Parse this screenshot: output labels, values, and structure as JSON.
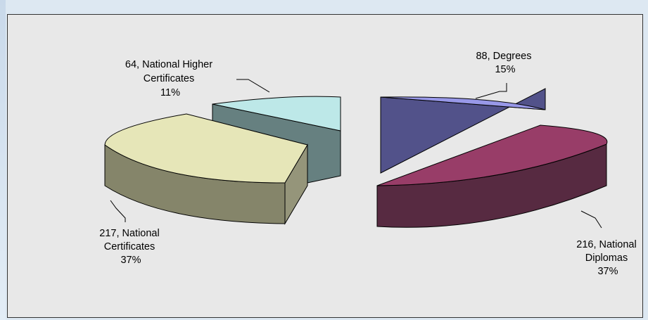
{
  "figure": {
    "title": ""
  },
  "chart_data": {
    "type": "pie",
    "style": "3d-exploded",
    "title": "",
    "slices": [
      {
        "label": "Degrees",
        "value": 88,
        "percent": "15%",
        "color": "#9898e8"
      },
      {
        "label": "National Diplomas",
        "value": 216,
        "percent": "37%",
        "color": "#983d68"
      },
      {
        "label": "National Certificates",
        "value": 217,
        "percent": "37%",
        "color": "#e6e6b8"
      },
      {
        "label": "National Higher Certificates",
        "value": 64,
        "percent": "11%",
        "color": "#bde8e8"
      }
    ],
    "data_labels": [
      {
        "lines": [
          "88, Degrees",
          "15%"
        ]
      },
      {
        "lines": [
          "216, National",
          "Diplomas",
          "37%"
        ]
      },
      {
        "lines": [
          "217, National",
          "Certificates",
          "37%"
        ]
      },
      {
        "lines": [
          "64, National Higher",
          "Certificates",
          "11%"
        ]
      }
    ]
  }
}
